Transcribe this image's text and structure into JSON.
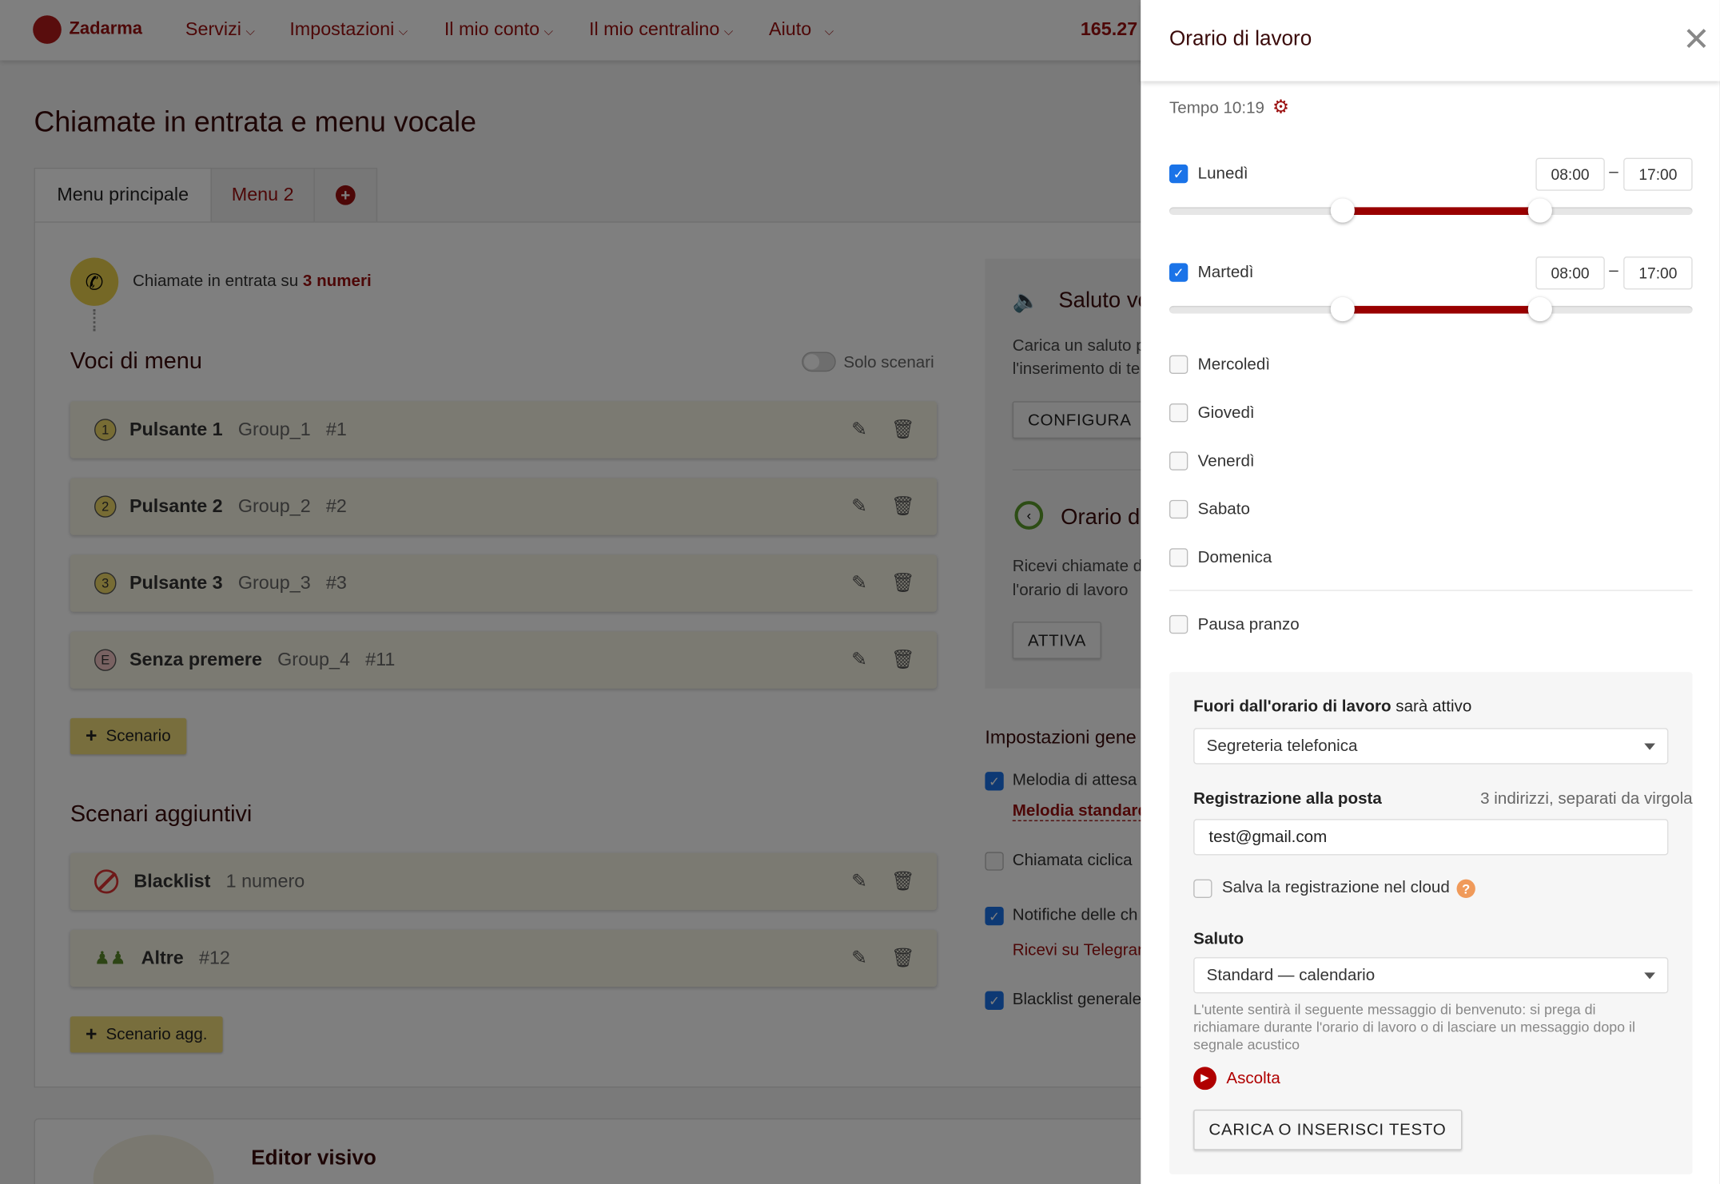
{
  "header": {
    "logo_text": "Zadarma",
    "nav": [
      "Servizi",
      "Impostazioni",
      "Il mio conto",
      "Il mio centralino",
      "Aiuto"
    ],
    "balance": "165.27"
  },
  "page": {
    "title": "Chiamate in entrata e menu vocale",
    "tabs": [
      {
        "label": "Menu principale",
        "active": true
      },
      {
        "label": "Menu 2",
        "active": false
      }
    ],
    "incoming_prefix": "Chiamate in entrata su",
    "incoming_link": "3 numeri",
    "menu_title": "Voci di menu",
    "toggle_label": "Solo scenari",
    "menu_items": [
      {
        "badge": "1",
        "label": "Pulsante 1",
        "group": "Group_1",
        "num": "#1"
      },
      {
        "badge": "2",
        "label": "Pulsante 2",
        "group": "Group_2",
        "num": "#2"
      },
      {
        "badge": "3",
        "label": "Pulsante 3",
        "group": "Group_3",
        "num": "#3"
      },
      {
        "badge": "E",
        "label": "Senza premere",
        "group": "Group_4",
        "num": "#11"
      }
    ],
    "add_scenario": "Scenario",
    "extra_title": "Scenari aggiuntivi",
    "extra_items": [
      {
        "label": "Blacklist",
        "sub": "1 numero"
      },
      {
        "label": "Altre",
        "sub": "#12"
      }
    ],
    "add_extra": "Scenario agg.",
    "side": {
      "greeting_title": "Saluto vo",
      "greeting_text1": "Carica un saluto p",
      "greeting_text2": "l'inserimento di te",
      "configure": "CONFIGURA",
      "hours_title": "Orario di",
      "hours_text1": "Ricevi chiamate d",
      "hours_text2": "l'orario di lavoro",
      "activate": "ATTIVA",
      "general_title": "Impostazioni gene",
      "settings": [
        {
          "label": "Melodia di attesa",
          "checked": true,
          "link": "Melodia standard"
        },
        {
          "label": "Chiamata ciclica",
          "checked": false
        },
        {
          "label": "Notifiche delle ch",
          "checked": true,
          "link": "Ricevi su Telegram"
        },
        {
          "label": "Blacklist generale",
          "checked": true
        }
      ]
    },
    "editor_title": "Editor visivo"
  },
  "panel": {
    "title": "Orario di lavoro",
    "time": "Tempo 10:19",
    "days": [
      {
        "label": "Lunedì",
        "checked": true,
        "from": "08:00",
        "to": "17:00",
        "range_hours": [
          8,
          17
        ]
      },
      {
        "label": "Martedì",
        "checked": true,
        "from": "08:00",
        "to": "17:00",
        "range_hours": [
          8,
          17
        ]
      },
      {
        "label": "Mercoledì",
        "checked": false
      },
      {
        "label": "Giovedì",
        "checked": false
      },
      {
        "label": "Venerdì",
        "checked": false
      },
      {
        "label": "Sabato",
        "checked": false
      },
      {
        "label": "Domenica",
        "checked": false
      }
    ],
    "lunch": "Pausa pranzo",
    "off_hours_bold": "Fuori dall'orario di lavoro",
    "off_hours_rest": "sarà attivo",
    "off_hours_value": "Segreteria telefonica",
    "mail_label": "Registrazione alla posta",
    "mail_hint": "3 indirizzi, separati da virgola",
    "mail_value": "test@gmail.com",
    "cloud_label": "Salva la registrazione nel cloud",
    "greeting_label": "Saluto",
    "greeting_value": "Standard — calendario",
    "greeting_desc": "L'utente sentirà il seguente messaggio di benvenuto: si prega di richiamare durante l'orario di lavoro o di lasciare un messaggio dopo il segnale acustico",
    "listen": "Ascolta",
    "upload": "CARICA O INSERISCI TESTO"
  },
  "colors": {
    "brand": "#9b0f0f",
    "slider": "#990000",
    "checkbox": "#1a73e8",
    "accent_yellow": "#f0dc7a"
  }
}
